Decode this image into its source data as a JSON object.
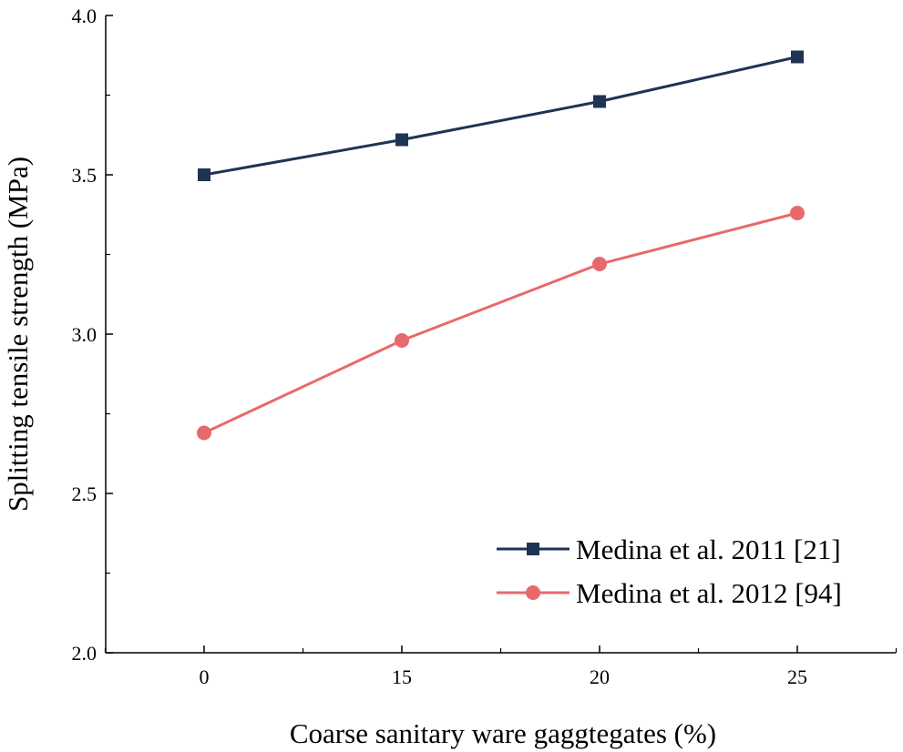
{
  "chart_data": {
    "type": "line",
    "title": "",
    "xlabel": "Coarse sanitary ware gaggtegates (%)",
    "ylabel": "Splitting tensile strength (MPa)",
    "categories": [
      "0",
      "15",
      "20",
      "25"
    ],
    "ylim": [
      2.0,
      4.0
    ],
    "yticks": [
      "2.0",
      "2.5",
      "3.0",
      "3.5",
      "4.0"
    ],
    "yticks_values": [
      2.0,
      2.5,
      3.0,
      3.5,
      4.0
    ],
    "grid": false,
    "legend_position": "bottom-right",
    "series": [
      {
        "name": "Medina et al. 2011 [21]",
        "marker": "square",
        "color": "#1f3354",
        "values": [
          3.5,
          3.61,
          3.73,
          3.87
        ]
      },
      {
        "name": "Medina et al. 2012 [94]",
        "marker": "circle",
        "color": "#e8696c",
        "values": [
          2.69,
          2.98,
          3.22,
          3.38
        ]
      }
    ]
  }
}
